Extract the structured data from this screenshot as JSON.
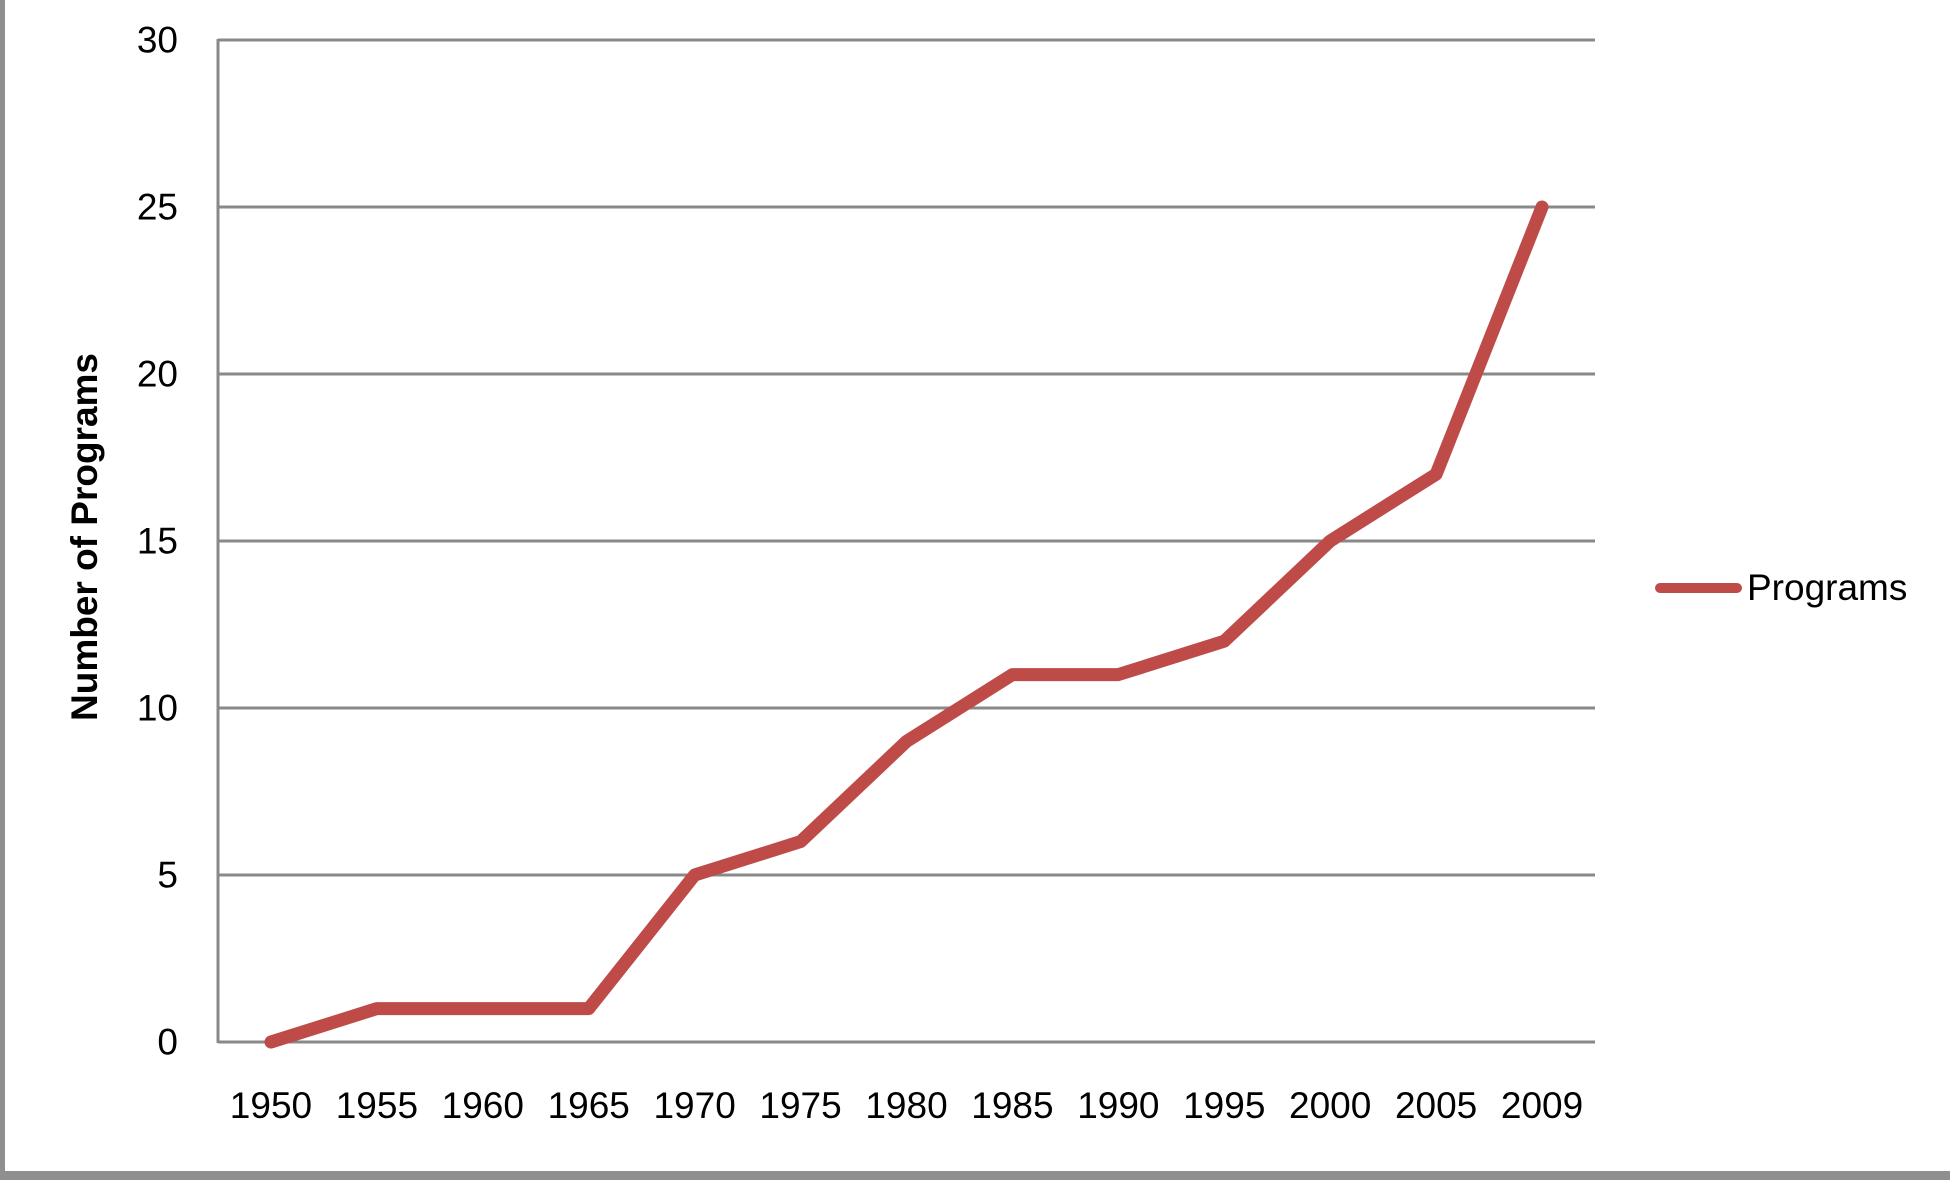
{
  "colors": {
    "series_line": "#BE4B48",
    "gridline": "#898989",
    "axis": "#898989",
    "page_edge": "#8F8F8F",
    "text": "#000000",
    "background": "#FFFFFF"
  },
  "legend": {
    "label": "Programs"
  },
  "chart_data": {
    "type": "line",
    "title": "",
    "categories": [
      "1950",
      "1955",
      "1960",
      "1965",
      "1970",
      "1975",
      "1980",
      "1985",
      "1990",
      "1995",
      "2000",
      "2005",
      "2009"
    ],
    "series": [
      {
        "name": "Programs",
        "values": [
          0,
          1,
          1,
          1,
          5,
          6,
          9,
          11,
          11,
          12,
          15,
          17,
          25
        ],
        "color": "#BE4B48"
      }
    ],
    "xlabel": "",
    "ylabel": "Number of Programs",
    "ylim": [
      0,
      30
    ],
    "ytick_step": 5,
    "y_ticks": [
      0,
      5,
      10,
      15,
      20,
      25,
      30
    ],
    "grid": "horizontal",
    "legend_position": "right-center"
  }
}
